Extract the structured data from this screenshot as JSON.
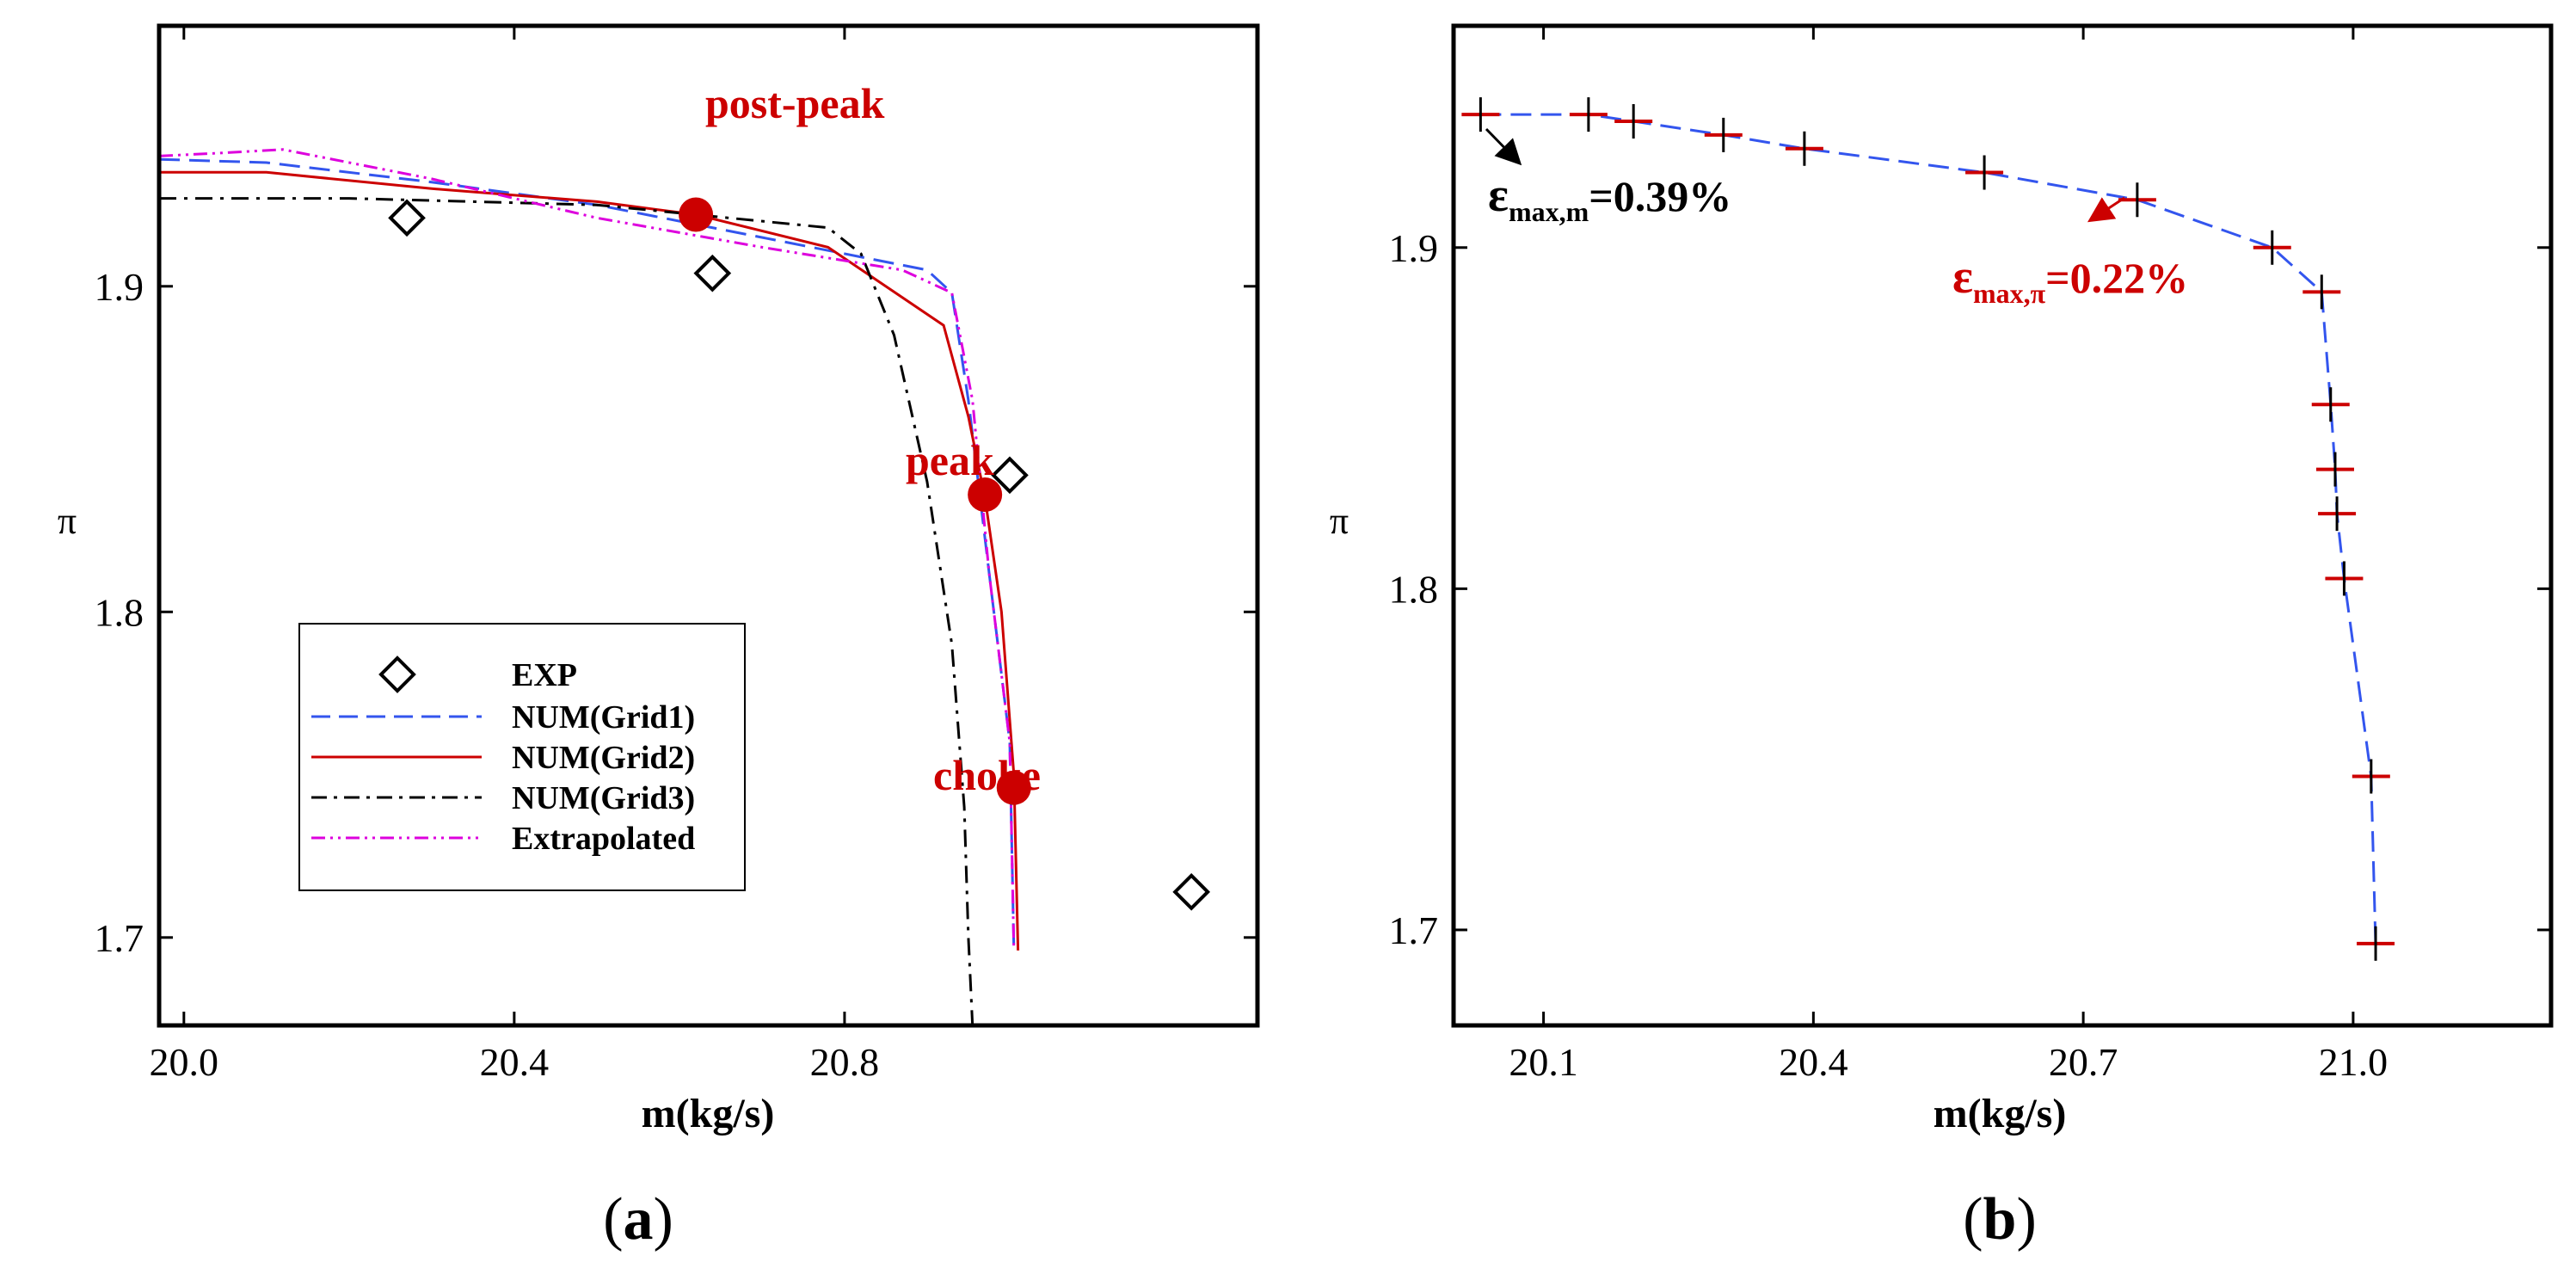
{
  "chart_data": [
    {
      "type": "line",
      "panel_label": "a",
      "caption": "(a)",
      "xlabel": "m(kg/s)",
      "ylabel": "π",
      "xlim": [
        19.97,
        21.3
      ],
      "ylim": [
        1.673,
        1.98
      ],
      "xticks": [
        20.0,
        20.4,
        20.8
      ],
      "xtick_labels": [
        "20.0",
        "20.4",
        "20.8"
      ],
      "yticks": [
        1.7,
        1.8,
        1.9
      ],
      "ytick_labels": [
        "1.7",
        "1.8",
        "1.9"
      ],
      "series": [
        {
          "name": "EXP",
          "kind": "marker",
          "marker": "diamond",
          "color": "#000000",
          "x": [
            20.27,
            20.64,
            21.0,
            21.22
          ],
          "y": [
            1.921,
            1.904,
            1.842,
            1.714
          ]
        },
        {
          "name": "NUM(Grid1)",
          "kind": "line",
          "dash": "dashed",
          "color": "#3355ee",
          "x": [
            19.97,
            20.1,
            20.3,
            20.5,
            20.7,
            20.9,
            20.93,
            20.95,
            20.975,
            21.0,
            21.005
          ],
          "y": [
            1.939,
            1.938,
            1.932,
            1.925,
            1.915,
            1.905,
            1.898,
            1.865,
            1.812,
            1.76,
            1.696
          ]
        },
        {
          "name": "NUM(Grid2)",
          "kind": "line",
          "dash": "solid",
          "color": "#cc0000",
          "x": [
            19.97,
            20.1,
            20.3,
            20.5,
            20.62,
            20.78,
            20.92,
            20.95,
            20.97,
            20.99,
            21.005,
            21.01
          ],
          "y": [
            1.935,
            1.935,
            1.93,
            1.926,
            1.922,
            1.912,
            1.888,
            1.86,
            1.835,
            1.8,
            1.75,
            1.696
          ]
        },
        {
          "name": "NUM(Grid3)",
          "kind": "line",
          "dash": "dashdot",
          "color": "#000000",
          "x": [
            19.97,
            20.2,
            20.5,
            20.78,
            20.82,
            20.86,
            20.9,
            20.93,
            20.945,
            20.95,
            20.955
          ],
          "y": [
            1.927,
            1.927,
            1.925,
            1.918,
            1.91,
            1.885,
            1.84,
            1.79,
            1.74,
            1.7,
            1.673
          ]
        },
        {
          "name": "Extrapolated",
          "kind": "line",
          "dash": "dashdotdot",
          "color": "#dd00dd",
          "x": [
            19.97,
            20.05,
            20.12,
            20.3,
            20.5,
            20.7,
            20.87,
            20.93,
            20.955,
            20.975,
            21.0,
            21.005
          ],
          "y": [
            1.94,
            1.941,
            1.942,
            1.933,
            1.921,
            1.912,
            1.905,
            1.898,
            1.865,
            1.812,
            1.76,
            1.696
          ]
        }
      ],
      "operating_points": [
        {
          "label": "post-peak",
          "x": 20.62,
          "y": 1.922,
          "color": "#cc0000"
        },
        {
          "label": "peak",
          "x": 20.97,
          "y": 1.836,
          "color": "#cc0000"
        },
        {
          "label": "choke",
          "x": 21.005,
          "y": 1.746,
          "color": "#cc0000"
        }
      ],
      "legend": [
        "EXP",
        "NUM(Grid1)",
        "NUM(Grid2)",
        "NUM(Grid3)",
        "Extrapolated"
      ],
      "legend_position": "lower-left"
    },
    {
      "type": "scatter",
      "panel_label": "b",
      "caption": "(b)",
      "xlabel": "m(kg/s)",
      "ylabel": "π",
      "xlim": [
        20.0,
        21.22
      ],
      "ylim": [
        1.672,
        1.965
      ],
      "xticks": [
        20.1,
        20.4,
        20.7,
        21.0
      ],
      "xtick_labels": [
        "20.1",
        "20.4",
        "20.7",
        "21.0"
      ],
      "yticks": [
        1.7,
        1.8,
        1.9
      ],
      "ytick_labels": [
        "1.7",
        "1.8",
        "1.9"
      ],
      "series": [
        {
          "name": "error bars",
          "kind": "cross",
          "color_horizontal": "#cc0000",
          "color_vertical": "#000000",
          "x": [
            20.03,
            20.15,
            20.2,
            20.3,
            20.39,
            20.59,
            20.76,
            20.91,
            20.965,
            20.975,
            20.98,
            20.982,
            20.99,
            21.02,
            21.025
          ],
          "y": [
            1.939,
            1.939,
            1.937,
            1.933,
            1.929,
            1.922,
            1.914,
            1.9,
            1.887,
            1.854,
            1.835,
            1.822,
            1.803,
            1.745,
            1.696
          ]
        },
        {
          "name": "fit",
          "kind": "line",
          "dash": "dashed",
          "color": "#3355ee",
          "x": [
            20.03,
            20.15,
            20.2,
            20.3,
            20.39,
            20.59,
            20.76,
            20.91,
            20.965,
            20.975,
            20.98,
            20.982,
            20.99,
            21.02,
            21.025
          ],
          "y": [
            1.939,
            1.939,
            1.937,
            1.933,
            1.929,
            1.922,
            1.914,
            1.9,
            1.887,
            1.854,
            1.835,
            1.822,
            1.803,
            1.745,
            1.696
          ]
        }
      ],
      "annotations": [
        {
          "id": "eps-m",
          "symbol": "ε",
          "subscript": "max,m",
          "value": "=0.39%",
          "color": "#000000"
        },
        {
          "id": "eps-pi",
          "symbol": "ε",
          "subscript": "max,π",
          "value": "=0.22%",
          "color": "#cc0000"
        }
      ]
    }
  ]
}
